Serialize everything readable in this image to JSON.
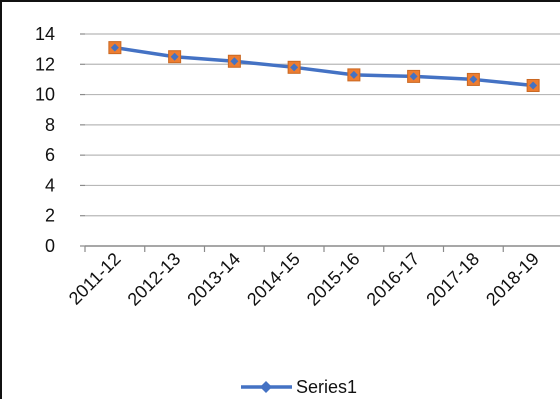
{
  "chart_data": {
    "type": "line",
    "title": "",
    "xlabel": "",
    "ylabel": "",
    "categories": [
      "2011-12",
      "2012-13",
      "2013-14",
      "2014-15",
      "2015-16",
      "2016-17",
      "2017-18",
      "2018-19"
    ],
    "series": [
      {
        "name": "Series1",
        "values": [
          13.1,
          12.5,
          12.2,
          11.8,
          11.3,
          11.2,
          11.0,
          10.6
        ],
        "line_color": "#4472c4",
        "marker_color": "#ed7d31"
      }
    ],
    "ylim": [
      0,
      14
    ],
    "yticks": [
      0,
      2,
      4,
      6,
      8,
      10,
      12,
      14
    ],
    "grid": true,
    "legend": "bottom"
  }
}
